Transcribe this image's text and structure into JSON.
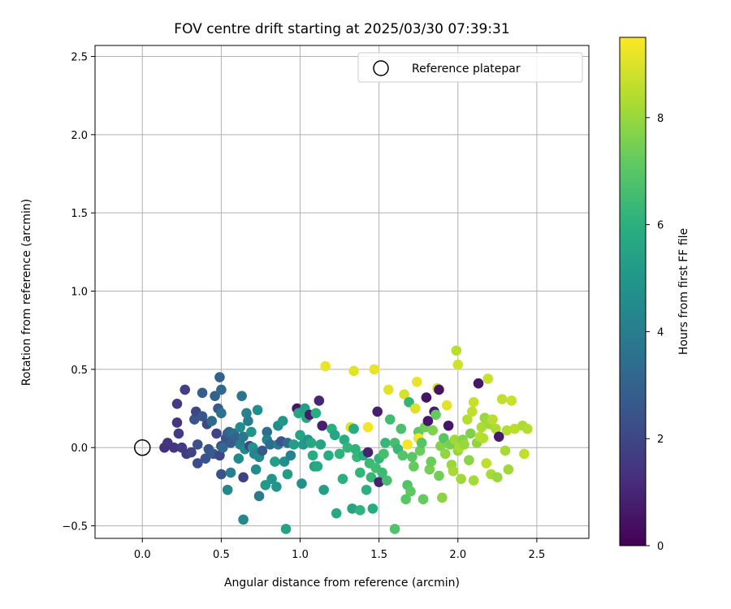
{
  "chart_data": {
    "type": "scatter",
    "title": "FOV centre drift starting at 2025/03/30 07:39:31",
    "xlabel": "Angular distance from reference (arcmin)",
    "ylabel": "Rotation from reference (arcmin)",
    "xlim": [
      -0.3,
      2.83
    ],
    "ylim": [
      -0.58,
      2.57
    ],
    "x_ticks": [
      0.0,
      0.5,
      1.0,
      1.5,
      2.0,
      2.5
    ],
    "x_tick_labels": [
      "0.0",
      "0.5",
      "1.0",
      "1.5",
      "2.0",
      "2.5"
    ],
    "y_ticks": [
      -0.5,
      0.0,
      0.5,
      1.0,
      1.5,
      2.0,
      2.5
    ],
    "y_tick_labels": [
      "−0.5",
      "0.0",
      "0.5",
      "1.0",
      "1.5",
      "2.0",
      "2.5"
    ],
    "grid": true,
    "legend": {
      "label": "Reference platepar",
      "position": "top-right"
    },
    "reference_point": {
      "x": 0.0,
      "y": 0.0
    },
    "colorbar": {
      "label": "Hours from first FF file",
      "colormap": "viridis",
      "range": [
        0,
        9.5
      ],
      "ticks": [
        0,
        2,
        4,
        6,
        8
      ],
      "tick_labels": [
        "0",
        "2",
        "4",
        "6",
        "8"
      ]
    },
    "points": [
      {
        "x": 0.14,
        "y": 0.0,
        "h": 1.3
      },
      {
        "x": 0.16,
        "y": 0.03,
        "h": 1.4
      },
      {
        "x": 0.2,
        "y": 0.0,
        "h": 1.5
      },
      {
        "x": 0.22,
        "y": 0.28,
        "h": 1.6
      },
      {
        "x": 0.22,
        "y": 0.16,
        "h": 1.5
      },
      {
        "x": 0.23,
        "y": 0.09,
        "h": 1.7
      },
      {
        "x": 0.25,
        "y": 0.0,
        "h": 1.6
      },
      {
        "x": 0.27,
        "y": 0.37,
        "h": 1.8
      },
      {
        "x": 0.28,
        "y": -0.04,
        "h": 1.7
      },
      {
        "x": 0.31,
        "y": -0.03,
        "h": 1.9
      },
      {
        "x": 0.33,
        "y": 0.18,
        "h": 2.5
      },
      {
        "x": 0.34,
        "y": 0.23,
        "h": 2.0
      },
      {
        "x": 0.35,
        "y": 0.02,
        "h": 2.3
      },
      {
        "x": 0.35,
        "y": -0.1,
        "h": 2.2
      },
      {
        "x": 0.38,
        "y": 0.35,
        "h": 2.8
      },
      {
        "x": 0.38,
        "y": 0.2,
        "h": 2.6
      },
      {
        "x": 0.4,
        "y": -0.07,
        "h": 2.4
      },
      {
        "x": 0.41,
        "y": 0.15,
        "h": 2.1
      },
      {
        "x": 0.42,
        "y": -0.01,
        "h": 2.5
      },
      {
        "x": 0.44,
        "y": 0.17,
        "h": 3.3
      },
      {
        "x": 0.45,
        "y": -0.04,
        "h": 2.7
      },
      {
        "x": 0.46,
        "y": 0.33,
        "h": 3.0
      },
      {
        "x": 0.47,
        "y": 0.09,
        "h": 1.9
      },
      {
        "x": 0.48,
        "y": 0.25,
        "h": 2.6
      },
      {
        "x": 0.49,
        "y": -0.05,
        "h": 2.0
      },
      {
        "x": 0.49,
        "y": 0.45,
        "h": 2.9
      },
      {
        "x": 0.5,
        "y": 0.37,
        "h": 3.2
      },
      {
        "x": 0.5,
        "y": 0.22,
        "h": 3.6
      },
      {
        "x": 0.5,
        "y": -0.17,
        "h": 2.4
      },
      {
        "x": 0.5,
        "y": 0.01,
        "h": 2.2
      },
      {
        "x": 0.51,
        "y": 0.0,
        "h": 3.2
      },
      {
        "x": 0.53,
        "y": 0.06,
        "h": 2.3
      },
      {
        "x": 0.54,
        "y": 0.09,
        "h": 2.8
      },
      {
        "x": 0.54,
        "y": -0.27,
        "h": 4.3
      },
      {
        "x": 0.55,
        "y": 0.1,
        "h": 3.1
      },
      {
        "x": 0.56,
        "y": 0.03,
        "h": 2.7
      },
      {
        "x": 0.56,
        "y": -0.16,
        "h": 4.1
      },
      {
        "x": 0.58,
        "y": 0.09,
        "h": 3.4
      },
      {
        "x": 0.6,
        "y": 0.06,
        "h": 3.0
      },
      {
        "x": 0.61,
        "y": -0.07,
        "h": 4.5
      },
      {
        "x": 0.62,
        "y": 0.13,
        "h": 4.6
      },
      {
        "x": 0.62,
        "y": 0.02,
        "h": 4.0
      },
      {
        "x": 0.63,
        "y": 0.33,
        "h": 3.7
      },
      {
        "x": 0.64,
        "y": -0.19,
        "h": 1.8
      },
      {
        "x": 0.64,
        "y": -0.46,
        "h": 4.4
      },
      {
        "x": 0.64,
        "y": 0.07,
        "h": 3.8
      },
      {
        "x": 0.65,
        "y": -0.01,
        "h": 4.4
      },
      {
        "x": 0.66,
        "y": 0.22,
        "h": 4.2
      },
      {
        "x": 0.67,
        "y": 0.17,
        "h": 4.0
      },
      {
        "x": 0.68,
        "y": 0.01,
        "h": 2.0
      },
      {
        "x": 0.69,
        "y": 0.1,
        "h": 4.9
      },
      {
        "x": 0.7,
        "y": 0.0,
        "h": 4.8
      },
      {
        "x": 0.71,
        "y": -0.04,
        "h": 4.3
      },
      {
        "x": 0.72,
        "y": -0.14,
        "h": 4.6
      },
      {
        "x": 0.73,
        "y": 0.24,
        "h": 4.7
      },
      {
        "x": 0.74,
        "y": -0.06,
        "h": 4.5
      },
      {
        "x": 0.74,
        "y": -0.31,
        "h": 3.9
      },
      {
        "x": 0.76,
        "y": -0.02,
        "h": 2.6
      },
      {
        "x": 0.78,
        "y": -0.24,
        "h": 5.1
      },
      {
        "x": 0.79,
        "y": 0.1,
        "h": 3.5
      },
      {
        "x": 0.79,
        "y": 0.05,
        "h": 4.1
      },
      {
        "x": 0.81,
        "y": 0.02,
        "h": 3.3
      },
      {
        "x": 0.82,
        "y": -0.2,
        "h": 4.9
      },
      {
        "x": 0.84,
        "y": -0.09,
        "h": 5.3
      },
      {
        "x": 0.85,
        "y": -0.25,
        "h": 5.0
      },
      {
        "x": 0.86,
        "y": 0.14,
        "h": 4.6
      },
      {
        "x": 0.86,
        "y": 0.02,
        "h": 3.9
      },
      {
        "x": 0.88,
        "y": 0.04,
        "h": 2.5
      },
      {
        "x": 0.89,
        "y": 0.17,
        "h": 5.0
      },
      {
        "x": 0.9,
        "y": -0.09,
        "h": 4.7
      },
      {
        "x": 0.91,
        "y": -0.52,
        "h": 5.4
      },
      {
        "x": 0.92,
        "y": 0.03,
        "h": 3.3
      },
      {
        "x": 0.92,
        "y": -0.17,
        "h": 5.2
      },
      {
        "x": 0.94,
        "y": -0.05,
        "h": 4.2
      },
      {
        "x": 0.96,
        "y": 0.02,
        "h": 5.3
      },
      {
        "x": 0.98,
        "y": 0.25,
        "h": 0.6
      },
      {
        "x": 0.99,
        "y": 0.22,
        "h": 5.6
      },
      {
        "x": 1.0,
        "y": 0.08,
        "h": 5.5
      },
      {
        "x": 1.01,
        "y": -0.23,
        "h": 4.8
      },
      {
        "x": 1.02,
        "y": 0.02,
        "h": 5.1
      },
      {
        "x": 1.03,
        "y": 0.25,
        "h": 5.3
      },
      {
        "x": 1.04,
        "y": 0.19,
        "h": 5.7
      },
      {
        "x": 1.05,
        "y": 0.05,
        "h": 4.9
      },
      {
        "x": 1.06,
        "y": 0.21,
        "h": 0.7
      },
      {
        "x": 1.07,
        "y": 0.03,
        "h": 5.6
      },
      {
        "x": 1.08,
        "y": -0.05,
        "h": 5.8
      },
      {
        "x": 1.09,
        "y": -0.12,
        "h": 5.4
      },
      {
        "x": 1.1,
        "y": 0.22,
        "h": 5.9
      },
      {
        "x": 1.11,
        "y": -0.12,
        "h": 5.7
      },
      {
        "x": 1.12,
        "y": 0.3,
        "h": 1.0
      },
      {
        "x": 1.13,
        "y": 0.02,
        "h": 5.5
      },
      {
        "x": 1.14,
        "y": 0.14,
        "h": 0.8
      },
      {
        "x": 1.15,
        "y": -0.27,
        "h": 5.3
      },
      {
        "x": 1.16,
        "y": 0.52,
        "h": 9.2
      },
      {
        "x": 1.18,
        "y": -0.05,
        "h": 5.9
      },
      {
        "x": 1.2,
        "y": 0.12,
        "h": 6.0
      },
      {
        "x": 1.22,
        "y": 0.08,
        "h": 5.6
      },
      {
        "x": 1.23,
        "y": -0.42,
        "h": 5.7
      },
      {
        "x": 1.25,
        "y": -0.04,
        "h": 6.1
      },
      {
        "x": 1.27,
        "y": -0.2,
        "h": 6.0
      },
      {
        "x": 1.28,
        "y": 0.05,
        "h": 5.8
      },
      {
        "x": 1.3,
        "y": 0.0,
        "h": 6.2
      },
      {
        "x": 1.32,
        "y": 0.13,
        "h": 9.0
      },
      {
        "x": 1.33,
        "y": -0.39,
        "h": 5.5
      },
      {
        "x": 1.34,
        "y": 0.49,
        "h": 9.1
      },
      {
        "x": 1.34,
        "y": 0.12,
        "h": 5.9
      },
      {
        "x": 1.35,
        "y": -0.01,
        "h": 6.1
      },
      {
        "x": 1.36,
        "y": -0.06,
        "h": 6.3
      },
      {
        "x": 1.38,
        "y": -0.16,
        "h": 6.2
      },
      {
        "x": 1.38,
        "y": -0.4,
        "h": 6.1
      },
      {
        "x": 1.4,
        "y": -0.05,
        "h": 5.9
      },
      {
        "x": 1.42,
        "y": -0.27,
        "h": 6.0
      },
      {
        "x": 1.43,
        "y": -0.03,
        "h": 0.9
      },
      {
        "x": 1.43,
        "y": 0.13,
        "h": 9.3
      },
      {
        "x": 1.44,
        "y": -0.1,
        "h": 6.4
      },
      {
        "x": 1.45,
        "y": -0.19,
        "h": 6.3
      },
      {
        "x": 1.46,
        "y": -0.39,
        "h": 5.8
      },
      {
        "x": 1.47,
        "y": 0.5,
        "h": 9.2
      },
      {
        "x": 1.48,
        "y": -0.13,
        "h": 6.5
      },
      {
        "x": 1.49,
        "y": 0.23,
        "h": 0.8
      },
      {
        "x": 1.5,
        "y": -0.22,
        "h": 0.9
      },
      {
        "x": 1.5,
        "y": -0.07,
        "h": 6.2
      },
      {
        "x": 1.52,
        "y": -0.16,
        "h": 6.4
      },
      {
        "x": 1.53,
        "y": -0.04,
        "h": 6.6
      },
      {
        "x": 1.54,
        "y": 0.03,
        "h": 6.3
      },
      {
        "x": 1.55,
        "y": -0.21,
        "h": 6.6
      },
      {
        "x": 1.56,
        "y": 0.37,
        "h": 9.1
      },
      {
        "x": 1.57,
        "y": 0.18,
        "h": 6.5
      },
      {
        "x": 1.6,
        "y": -0.52,
        "h": 6.8
      },
      {
        "x": 1.6,
        "y": 0.03,
        "h": 6.6
      },
      {
        "x": 1.62,
        "y": -0.01,
        "h": 6.3
      },
      {
        "x": 1.64,
        "y": 0.12,
        "h": 6.7
      },
      {
        "x": 1.65,
        "y": -0.05,
        "h": 6.9
      },
      {
        "x": 1.66,
        "y": 0.34,
        "h": 8.9
      },
      {
        "x": 1.67,
        "y": -0.33,
        "h": 7.0
      },
      {
        "x": 1.68,
        "y": 0.02,
        "h": 9.4
      },
      {
        "x": 1.68,
        "y": -0.24,
        "h": 6.8
      },
      {
        "x": 1.69,
        "y": 0.29,
        "h": 6.2
      },
      {
        "x": 1.7,
        "y": -0.28,
        "h": 7.1
      },
      {
        "x": 1.71,
        "y": -0.06,
        "h": 7.0
      },
      {
        "x": 1.72,
        "y": -0.12,
        "h": 7.2
      },
      {
        "x": 1.73,
        "y": 0.25,
        "h": 9.0
      },
      {
        "x": 1.74,
        "y": 0.42,
        "h": 9.2
      },
      {
        "x": 1.75,
        "y": 0.1,
        "h": 7.1
      },
      {
        "x": 1.75,
        "y": 0.06,
        "h": 9.3
      },
      {
        "x": 1.76,
        "y": -0.02,
        "h": 7.3
      },
      {
        "x": 1.77,
        "y": 0.03,
        "h": 6.9
      },
      {
        "x": 1.78,
        "y": -0.33,
        "h": 7.2
      },
      {
        "x": 1.79,
        "y": 0.13,
        "h": 7.4
      },
      {
        "x": 1.8,
        "y": 0.32,
        "h": 0.5
      },
      {
        "x": 1.81,
        "y": 0.17,
        "h": 0.6
      },
      {
        "x": 1.82,
        "y": -0.14,
        "h": 7.5
      },
      {
        "x": 1.83,
        "y": -0.09,
        "h": 7.3
      },
      {
        "x": 1.84,
        "y": 0.11,
        "h": 7.6
      },
      {
        "x": 1.85,
        "y": 0.23,
        "h": 0.7
      },
      {
        "x": 1.86,
        "y": 0.21,
        "h": 7.2
      },
      {
        "x": 1.87,
        "y": 0.38,
        "h": 8.9
      },
      {
        "x": 1.88,
        "y": 0.37,
        "h": 0.5
      },
      {
        "x": 1.88,
        "y": -0.18,
        "h": 7.4
      },
      {
        "x": 1.89,
        "y": 0.01,
        "h": 7.7
      },
      {
        "x": 1.9,
        "y": -0.32,
        "h": 7.8
      },
      {
        "x": 1.91,
        "y": 0.06,
        "h": 7.0
      },
      {
        "x": 1.92,
        "y": -0.04,
        "h": 7.9
      },
      {
        "x": 1.93,
        "y": 0.27,
        "h": 9.1
      },
      {
        "x": 1.94,
        "y": 0.14,
        "h": 0.6
      },
      {
        "x": 1.95,
        "y": 0.02,
        "h": 7.5
      },
      {
        "x": 1.96,
        "y": -0.11,
        "h": 8.0
      },
      {
        "x": 1.97,
        "y": -0.15,
        "h": 8.2
      },
      {
        "x": 1.98,
        "y": 0.05,
        "h": 8.1
      },
      {
        "x": 1.99,
        "y": 0.62,
        "h": 8.5
      },
      {
        "x": 2.0,
        "y": 0.53,
        "h": 8.8
      },
      {
        "x": 2.0,
        "y": -0.02,
        "h": 7.9
      },
      {
        "x": 2.01,
        "y": 0.0,
        "h": 8.3
      },
      {
        "x": 2.02,
        "y": -0.2,
        "h": 8.1
      },
      {
        "x": 2.03,
        "y": 0.05,
        "h": 7.7
      },
      {
        "x": 2.04,
        "y": 0.02,
        "h": 8.0
      },
      {
        "x": 2.06,
        "y": 0.18,
        "h": 8.4
      },
      {
        "x": 2.07,
        "y": -0.08,
        "h": 7.8
      },
      {
        "x": 2.08,
        "y": 0.09,
        "h": 7.6
      },
      {
        "x": 2.09,
        "y": 0.23,
        "h": 8.6
      },
      {
        "x": 2.1,
        "y": 0.29,
        "h": 8.7
      },
      {
        "x": 2.1,
        "y": -0.21,
        "h": 8.2
      },
      {
        "x": 2.12,
        "y": 0.03,
        "h": 7.9
      },
      {
        "x": 2.13,
        "y": 0.41,
        "h": 0.6
      },
      {
        "x": 2.14,
        "y": 0.07,
        "h": 8.5
      },
      {
        "x": 2.15,
        "y": 0.13,
        "h": 8.3
      },
      {
        "x": 2.16,
        "y": 0.06,
        "h": 8.4
      },
      {
        "x": 2.17,
        "y": 0.19,
        "h": 8.0
      },
      {
        "x": 2.18,
        "y": -0.1,
        "h": 8.6
      },
      {
        "x": 2.19,
        "y": 0.44,
        "h": 8.7
      },
      {
        "x": 2.2,
        "y": 0.15,
        "h": 8.1
      },
      {
        "x": 2.21,
        "y": -0.17,
        "h": 8.2
      },
      {
        "x": 2.22,
        "y": 0.18,
        "h": 8.5
      },
      {
        "x": 2.24,
        "y": 0.12,
        "h": 8.3
      },
      {
        "x": 2.25,
        "y": -0.19,
        "h": 8.0
      },
      {
        "x": 2.26,
        "y": 0.07,
        "h": 0.7
      },
      {
        "x": 2.28,
        "y": 0.31,
        "h": 8.6
      },
      {
        "x": 2.3,
        "y": -0.02,
        "h": 8.2
      },
      {
        "x": 2.31,
        "y": 0.11,
        "h": 8.4
      },
      {
        "x": 2.32,
        "y": -0.14,
        "h": 8.1
      },
      {
        "x": 2.34,
        "y": 0.3,
        "h": 8.7
      },
      {
        "x": 2.36,
        "y": 0.12,
        "h": 8.5
      },
      {
        "x": 2.41,
        "y": 0.14,
        "h": 8.3
      },
      {
        "x": 2.42,
        "y": -0.04,
        "h": 8.6
      },
      {
        "x": 2.44,
        "y": 0.12,
        "h": 8.4
      }
    ]
  }
}
